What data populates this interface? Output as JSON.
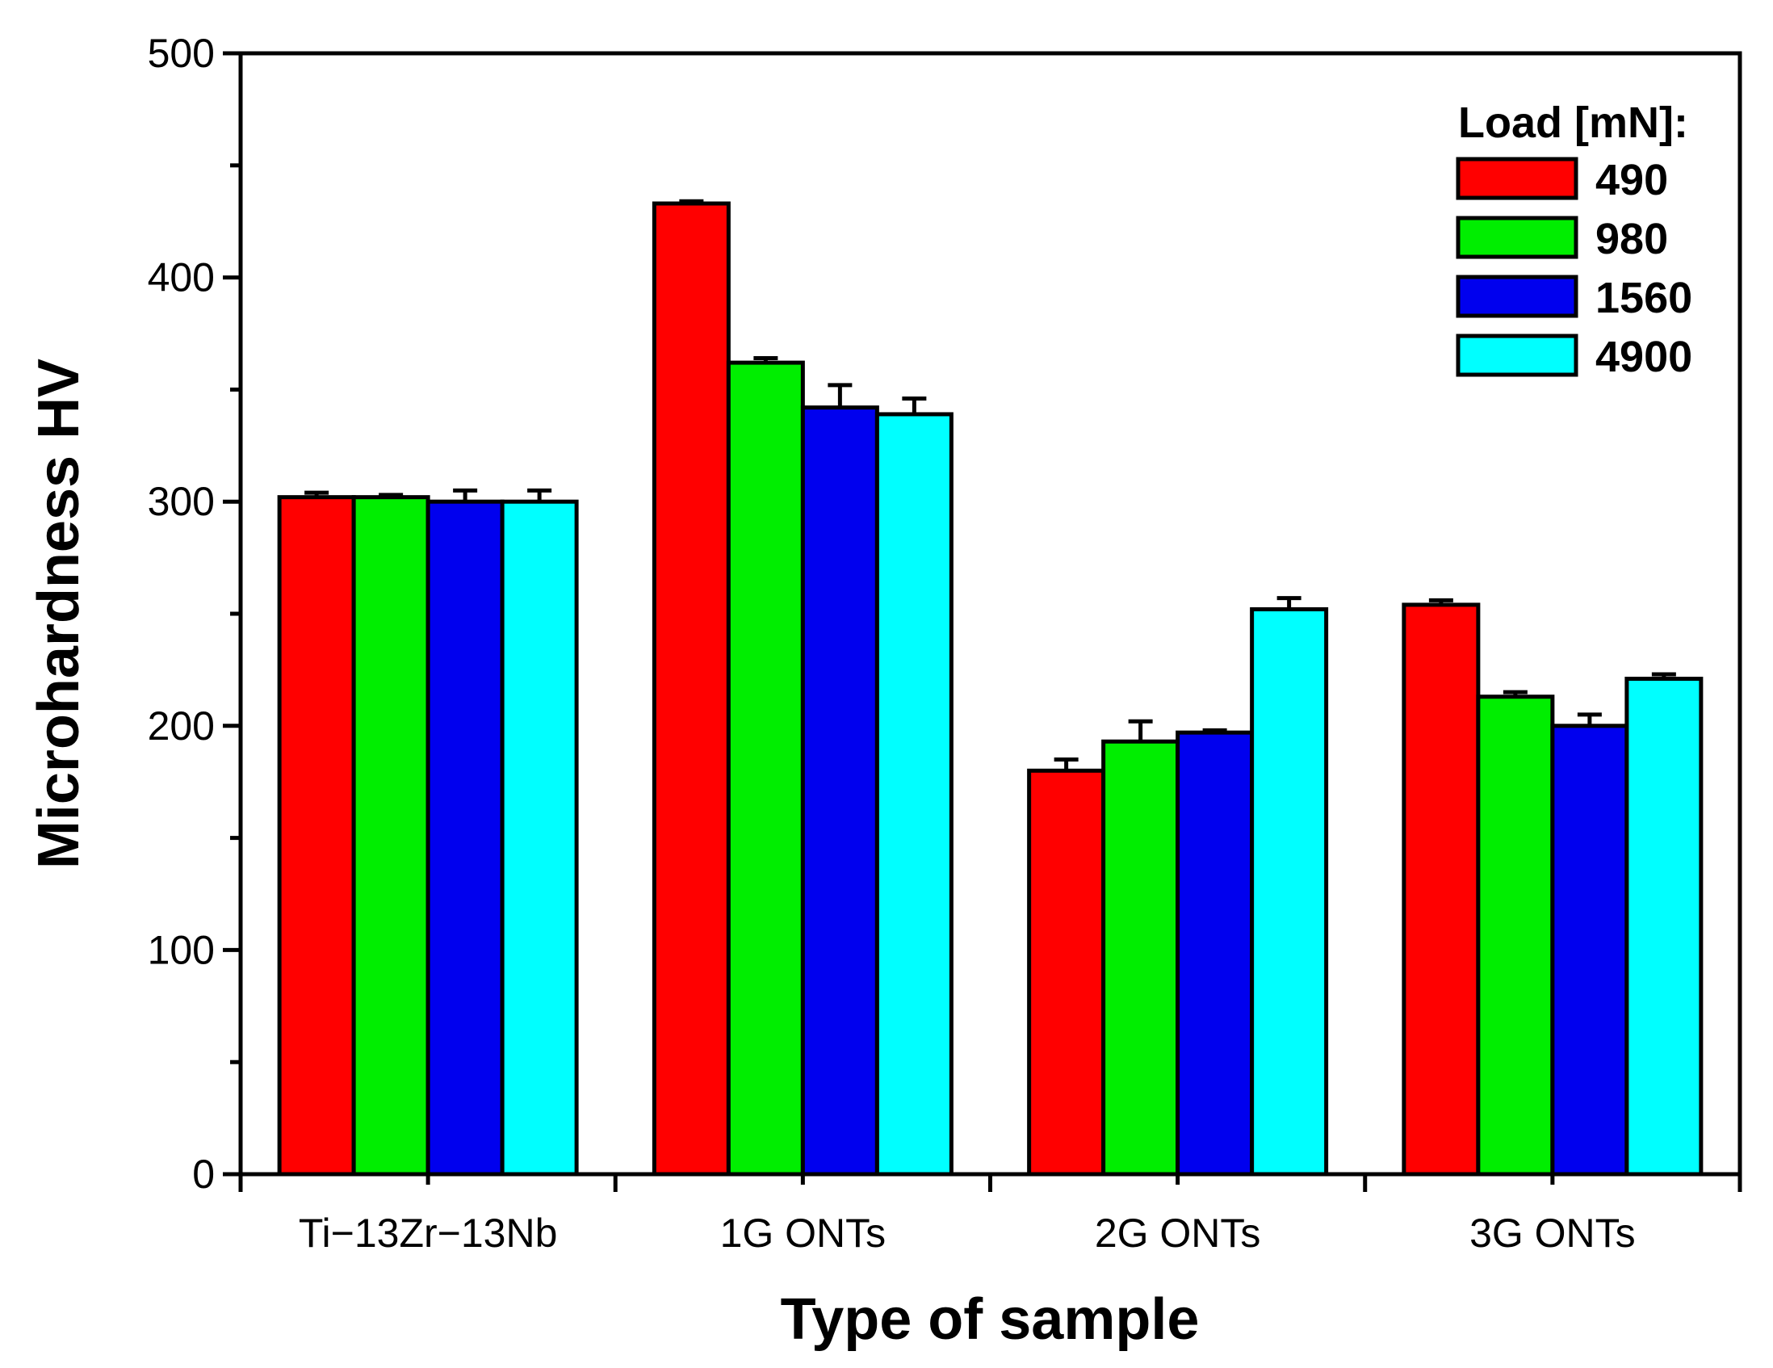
{
  "chart_data": {
    "type": "bar",
    "title": "",
    "xlabel": "Type of sample",
    "ylabel": "Microhardness HV",
    "ylim": [
      0,
      500
    ],
    "yticks": [
      "0",
      "100",
      "200",
      "300",
      "400",
      "500"
    ],
    "categories": [
      "Ti−13Zr−13Nb",
      "1G ONTs",
      "2G ONTs",
      "3G ONTs"
    ],
    "legend_title": "Load [mN]:",
    "legend_position": "top-right",
    "series": [
      {
        "name": "490",
        "color": "#ff0000",
        "values": [
          302,
          433,
          180,
          254
        ],
        "errors": [
          2,
          1,
          5,
          2
        ]
      },
      {
        "name": "980",
        "color": "#00ee00",
        "values": [
          302,
          362,
          193,
          213
        ],
        "errors": [
          1,
          2,
          9,
          2
        ]
      },
      {
        "name": "1560",
        "color": "#0000ee",
        "values": [
          300,
          342,
          197,
          200
        ],
        "errors": [
          5,
          10,
          1,
          5
        ]
      },
      {
        "name": "4900",
        "color": "#00ffff",
        "values": [
          300,
          339,
          252,
          221
        ],
        "errors": [
          5,
          7,
          5,
          2
        ]
      }
    ]
  }
}
